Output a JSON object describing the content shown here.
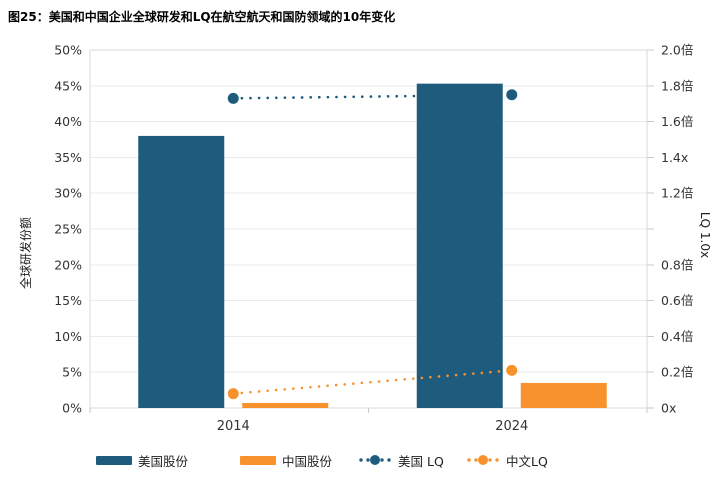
{
  "figure": {
    "title": "图25：美国和中国企业全球研发和LQ在航空航天和国防领域的10年变化"
  },
  "chart_data": {
    "type": "bar",
    "subtype": "grouped-bars-with-dotted-lines-dual-axis",
    "categories": [
      "2014",
      "2024"
    ],
    "series": [
      {
        "key": "us-share",
        "name": "美国股份",
        "type": "bar",
        "axis": "left",
        "values": [
          38,
          45.3
        ],
        "color": "#1f5b7d"
      },
      {
        "key": "china-share",
        "name": "中国股份",
        "type": "bar",
        "axis": "left",
        "values": [
          0.7,
          3.5
        ],
        "color": "#f7922d"
      },
      {
        "key": "us-lq",
        "name": "美国 LQ",
        "type": "line",
        "axis": "right",
        "values": [
          1.73,
          1.75
        ],
        "color": "#1f5b7d"
      },
      {
        "key": "china-lq",
        "name": "中文LQ",
        "type": "line",
        "axis": "right",
        "values": [
          0.08,
          0.21
        ],
        "color": "#f7922d"
      }
    ],
    "left_axis": {
      "title": "全球研发份额",
      "min": 0,
      "max": 50,
      "tick_step": 5,
      "tick_labels": [
        "0%",
        "5%",
        "10%",
        "15%",
        "20%",
        "25%",
        "30%",
        "35%",
        "40%",
        "45%",
        "50%"
      ]
    },
    "right_axis": {
      "title": "LQ 1.0x",
      "min": 0,
      "max": 2,
      "tick_step": 0.2,
      "tick_labels": [
        "0x",
        "0.2倍",
        "0.4倍",
        "0.6倍",
        "0.8倍",
        "",
        "1.2倍",
        "1.4x",
        "1.6倍",
        "1.8倍",
        "2.0倍"
      ]
    },
    "grid": true,
    "legend_position": "bottom",
    "colors": {
      "us": "#1f5b7d",
      "china": "#f7922d",
      "gridline": "#ebebeb",
      "axis_border": "#d9d9d9",
      "tick_text": "#333333"
    }
  }
}
